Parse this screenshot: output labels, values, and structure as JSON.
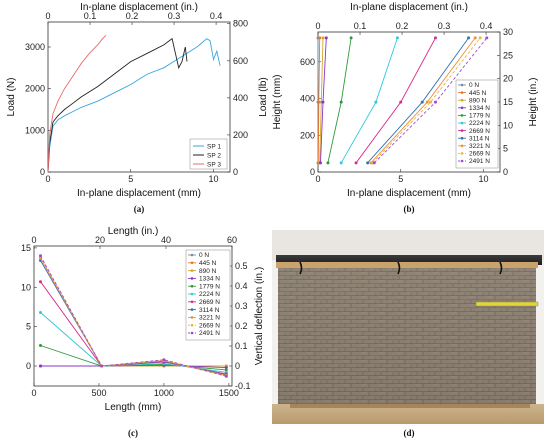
{
  "chart_data": [
    {
      "id": "a",
      "type": "line",
      "caption": "(a)",
      "xlabel": "In-plane displacement (mm)",
      "ylabel": "Load (N)",
      "x2label": "In-plane displacement (in.)",
      "y2label": "Load (lb)",
      "xlim": [
        0,
        11
      ],
      "ylim": [
        0,
        3600
      ],
      "x2lim": [
        0,
        0.4331
      ],
      "y2lim": [
        0,
        809.3
      ],
      "xticks": [
        0,
        5,
        10
      ],
      "yticks": [
        0,
        1000,
        2000,
        3000
      ],
      "x2ticks": [
        0,
        0.1,
        0.2,
        0.3,
        0.4
      ],
      "y2ticks": [
        0,
        200,
        400,
        600,
        800
      ],
      "xtick_labels": [
        "0",
        "5",
        "10"
      ],
      "ytick_labels": [
        "0",
        "1000",
        "2000",
        "3000"
      ],
      "x2tick_labels": [
        "0",
        "0.1",
        "0.2",
        "0.3",
        "0.4"
      ],
      "y2tick_labels": [
        "0",
        "200",
        "400",
        "600",
        "800"
      ],
      "legend": "bottom-right",
      "series": [
        {
          "name": "SP 1",
          "color": "#3aa6dd",
          "x": [
            0,
            0.1,
            0.3,
            0.6,
            1.0,
            1.5,
            2.0,
            3.0,
            4.0,
            5.0,
            6.0,
            7.0,
            8.0,
            9.0,
            9.6,
            9.8,
            10.0,
            10.2,
            10.4
          ],
          "y": [
            0,
            600,
            1100,
            1250,
            1350,
            1450,
            1550,
            1700,
            1900,
            2100,
            2350,
            2500,
            2750,
            3000,
            3200,
            3150,
            2700,
            2900,
            2550
          ]
        },
        {
          "name": "SP 2",
          "color": "#222222",
          "x": [
            0,
            0.1,
            0.3,
            0.6,
            1.0,
            1.5,
            2.0,
            3.0,
            4.0,
            5.0,
            6.0,
            7.0,
            7.5,
            7.7,
            7.9,
            8.1,
            8.3,
            8.4
          ],
          "y": [
            0,
            700,
            1200,
            1350,
            1500,
            1650,
            1800,
            2050,
            2350,
            2650,
            2850,
            3050,
            3200,
            2850,
            2500,
            2650,
            3000,
            2650
          ]
        },
        {
          "name": "SP 3",
          "color": "#ee6a6a",
          "x": [
            0,
            0.1,
            0.3,
            0.6,
            1.0,
            1.5,
            2.0,
            2.5,
            3.0,
            3.3,
            3.5
          ],
          "y": [
            0,
            900,
            1400,
            1700,
            2000,
            2300,
            2600,
            2850,
            3050,
            3200,
            3280
          ]
        }
      ]
    },
    {
      "id": "b",
      "type": "line",
      "caption": "(b)",
      "xlabel": "In-plane displacement (mm)",
      "ylabel": "Height (mm)",
      "x2label": "In-plane displacement (in.)",
      "y2label": "Height (in.)",
      "xlim": [
        0,
        11
      ],
      "ylim": [
        0,
        762
      ],
      "x2lim": [
        0,
        0.4331
      ],
      "y2lim": [
        0,
        30
      ],
      "xticks": [
        0,
        5,
        10
      ],
      "yticks": [
        0,
        200,
        400,
        600
      ],
      "x2ticks": [
        0,
        0.1,
        0.2,
        0.3,
        0.4
      ],
      "y2ticks": [
        0,
        5,
        10,
        15,
        20,
        25,
        30
      ],
      "xtick_labels": [
        "0",
        "5",
        "10"
      ],
      "ytick_labels": [
        "0",
        "200",
        "400",
        "600"
      ],
      "x2tick_labels": [
        "0",
        "0.1",
        "0.2",
        "0.3",
        "0.4"
      ],
      "y2tick_labels": [
        "0",
        "5",
        "10",
        "15",
        "20",
        "25",
        "30"
      ],
      "legend": "top-right",
      "heights": [
        50,
        380,
        730
      ],
      "series": [
        {
          "name": "0 N",
          "color": "#6f8faa",
          "dash": false,
          "x": [
            0,
            0,
            0
          ]
        },
        {
          "name": "445 N",
          "color": "#e8782a",
          "dash": false,
          "x": [
            0.02,
            0.05,
            0.1
          ]
        },
        {
          "name": "890 N",
          "color": "#d4a72c",
          "dash": false,
          "x": [
            0.1,
            0.2,
            0.3
          ]
        },
        {
          "name": "1334 N",
          "color": "#8a35c9",
          "dash": false,
          "x": [
            0.15,
            0.3,
            0.5
          ]
        },
        {
          "name": "1779 N",
          "color": "#2e9a3a",
          "dash": false,
          "x": [
            0.6,
            1.4,
            2.0
          ]
        },
        {
          "name": "2224 N",
          "color": "#32c7d9",
          "dash": false,
          "x": [
            1.4,
            3.5,
            4.8
          ]
        },
        {
          "name": "2669 N",
          "color": "#d82d8c",
          "dash": false,
          "x": [
            2.3,
            5.0,
            7.1
          ]
        },
        {
          "name": "3114 N",
          "color": "#2f73b8",
          "dash": false,
          "x": [
            3.0,
            6.3,
            9.1
          ]
        },
        {
          "name": "3221 N",
          "color": "#f08f35",
          "dash": false,
          "x": [
            3.2,
            6.6,
            9.5
          ]
        },
        {
          "name": "2669 N",
          "color": "#e6b73d",
          "dash": true,
          "x": [
            3.3,
            6.8,
            9.8
          ]
        },
        {
          "name": "2491 N",
          "color": "#a24ad4",
          "dash": true,
          "x": [
            3.4,
            7.1,
            10.2
          ]
        }
      ]
    },
    {
      "id": "c",
      "type": "line",
      "caption": "(c)",
      "xlabel": "Length (mm)",
      "ylabel": "",
      "x2label": "Length (in.)",
      "y2label": "Vertical deflection (in.)",
      "xlim": [
        0,
        1524
      ],
      "ylim": [
        -2.54,
        15.24
      ],
      "x2lim": [
        0,
        60
      ],
      "y2lim": [
        -0.1,
        0.6
      ],
      "xticks": [
        0,
        500,
        1000,
        1500
      ],
      "yticks": [
        0,
        5,
        10,
        15
      ],
      "x2ticks": [
        0,
        20,
        40,
        60
      ],
      "y2ticks": [
        -0.1,
        0,
        0.1,
        0.2,
        0.3,
        0.4,
        0.5
      ],
      "xtick_labels": [
        "0",
        "500",
        "1000",
        "1500"
      ],
      "ytick_labels": [
        "0",
        "5",
        "10",
        "15"
      ],
      "x2tick_labels": [
        "0",
        "20",
        "40",
        "60"
      ],
      "y2tick_labels": [
        "-0.1",
        "0",
        "0.1",
        "0.2",
        "0.3",
        "0.4",
        "0.5"
      ],
      "legend": "top-right",
      "lengths": [
        50,
        520,
        1000,
        1480
      ],
      "series": [
        {
          "name": "0 N",
          "color": "#6f8faa",
          "dash": false,
          "y": [
            0,
            0,
            0,
            0
          ]
        },
        {
          "name": "445 N",
          "color": "#e8782a",
          "dash": false,
          "y": [
            0,
            0,
            0,
            0
          ]
        },
        {
          "name": "890 N",
          "color": "#d4a72c",
          "dash": false,
          "y": [
            0,
            0,
            0,
            0
          ]
        },
        {
          "name": "1334 N",
          "color": "#8a35c9",
          "dash": false,
          "y": [
            0,
            0,
            0.1,
            -0.2
          ]
        },
        {
          "name": "1779 N",
          "color": "#2e9a3a",
          "dash": false,
          "y": [
            2.6,
            0,
            0.2,
            -0.5
          ]
        },
        {
          "name": "2224 N",
          "color": "#32c7d9",
          "dash": false,
          "y": [
            6.8,
            0,
            0.3,
            -0.8
          ]
        },
        {
          "name": "2669 N",
          "color": "#d82d8c",
          "dash": false,
          "y": [
            10.7,
            0,
            0.5,
            -1.0
          ]
        },
        {
          "name": "3114 N",
          "color": "#2f73b8",
          "dash": false,
          "y": [
            13.4,
            0,
            0.6,
            -1.1
          ]
        },
        {
          "name": "3221 N",
          "color": "#f08f35",
          "dash": false,
          "y": [
            13.7,
            0,
            0.7,
            -1.2
          ]
        },
        {
          "name": "2669 N",
          "color": "#e6b73d",
          "dash": true,
          "y": [
            13.9,
            0,
            0.7,
            -1.3
          ]
        },
        {
          "name": "2491 N",
          "color": "#a24ad4",
          "dash": true,
          "y": [
            14.0,
            0,
            0.8,
            -1.3
          ]
        }
      ]
    }
  ],
  "photo": {
    "caption": "(d)"
  }
}
